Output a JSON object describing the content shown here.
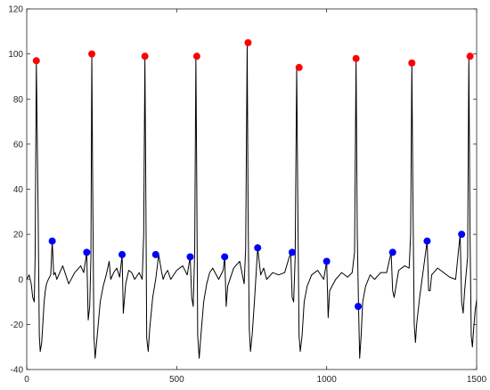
{
  "chart_data": {
    "type": "line",
    "title": "",
    "xlabel": "",
    "ylabel": "",
    "xlim": [
      0,
      1500
    ],
    "ylim": [
      -40,
      120
    ],
    "x_ticks": [
      0,
      500,
      1000,
      1500
    ],
    "y_ticks": [
      -40,
      -20,
      0,
      20,
      40,
      60,
      80,
      100,
      120
    ],
    "grid": false,
    "legend": "none",
    "colors": {
      "signal": "#000000",
      "r_peaks": "#ff0000",
      "t_peaks": "#0000ff",
      "axes": "#262626"
    },
    "series": [
      {
        "type": "line",
        "x": [
          0,
          8,
          15,
          20,
          25,
          28,
          32,
          38,
          42,
          45,
          50,
          58,
          62,
          66,
          72,
          80,
          85,
          90,
          95,
          100,
          110,
          120,
          140,
          160,
          180,
          190,
          200,
          205,
          210,
          214,
          217,
          220,
          224,
          228,
          235,
          245,
          255,
          265,
          275,
          280,
          290,
          300,
          310,
          318,
          322,
          330,
          340,
          350,
          360,
          375,
          385,
          390,
          394,
          397,
          400,
          405,
          410,
          420,
          430,
          440,
          450,
          455,
          460,
          470,
          480,
          500,
          520,
          535,
          545,
          550,
          555,
          560,
          564,
          567,
          570,
          575,
          580,
          590,
          600,
          610,
          620,
          640,
          655,
          660,
          665,
          670,
          690,
          710,
          725,
          730,
          735,
          738,
          742,
          746,
          752,
          760,
          770,
          775,
          780,
          790,
          800,
          820,
          840,
          860,
          880,
          885,
          890,
          895,
          900,
          904,
          908,
          912,
          918,
          925,
          935,
          950,
          970,
          990,
          1000,
          1005,
          1010,
          1030,
          1050,
          1070,
          1085,
          1093,
          1098,
          1102,
          1106,
          1110,
          1115,
          1120,
          1130,
          1145,
          1160,
          1180,
          1200,
          1215,
          1220,
          1225,
          1240,
          1260,
          1275,
          1280,
          1284,
          1288,
          1292,
          1296,
          1300,
          1310,
          1320,
          1335,
          1340,
          1345,
          1350,
          1370,
          1390,
          1410,
          1430,
          1445,
          1450,
          1455,
          1460,
          1470,
          1474,
          1478,
          1482,
          1486,
          1490,
          1495,
          1500
        ],
        "y": [
          0,
          2,
          -2,
          -8,
          -10,
          10,
          97,
          30,
          -25,
          -32,
          -28,
          -10,
          -5,
          -2,
          0,
          2,
          17,
          2,
          3,
          0,
          3,
          6,
          -2,
          3,
          6,
          3,
          12,
          -18,
          -12,
          10,
          100,
          40,
          -25,
          -35,
          -25,
          -10,
          -3,
          2,
          8,
          0,
          3,
          5,
          1,
          11,
          -15,
          -2,
          4,
          3,
          0,
          3,
          0,
          20,
          99,
          40,
          -26,
          -32,
          -22,
          -8,
          0,
          11,
          3,
          0,
          2,
          4,
          0,
          4,
          6,
          2,
          10,
          -8,
          -12,
          12,
          99,
          40,
          -25,
          -35,
          -26,
          -10,
          -2,
          3,
          5,
          0,
          4,
          10,
          -12,
          -3,
          5,
          8,
          -2,
          14,
          105,
          30,
          -22,
          -32,
          -24,
          -8,
          14,
          8,
          2,
          5,
          0,
          3,
          2,
          3,
          12,
          -8,
          -10,
          10,
          94,
          30,
          -25,
          -32,
          -25,
          -10,
          -3,
          2,
          4,
          0,
          8,
          -17,
          -5,
          0,
          3,
          1,
          3,
          12,
          98,
          20,
          -10,
          -35,
          -25,
          -10,
          -3,
          2,
          0,
          3,
          3,
          12,
          -5,
          -8,
          4,
          6,
          5,
          20,
          96,
          30,
          -20,
          -28,
          -20,
          -8,
          2,
          17,
          -5,
          -5,
          2,
          5,
          3,
          1,
          0,
          20,
          -10,
          -15,
          -5,
          10,
          99,
          20,
          -25,
          -30,
          -22,
          -14,
          -9
        ]
      },
      {
        "type": "scatter",
        "marker": "circle",
        "x": [
          32,
          217,
          394,
          567,
          738,
          908,
          1098,
          1284,
          1478
        ],
        "y": [
          97,
          100,
          99,
          99,
          105,
          94,
          98,
          96,
          99
        ]
      },
      {
        "type": "scatter",
        "marker": "circle",
        "x": [
          85,
          200,
          318,
          430,
          545,
          660,
          770,
          885,
          1000,
          1105,
          1220,
          1335,
          1450
        ],
        "y": [
          17,
          12,
          11,
          11,
          10,
          10,
          14,
          12,
          8,
          -12,
          12,
          17,
          20
        ]
      }
    ]
  }
}
